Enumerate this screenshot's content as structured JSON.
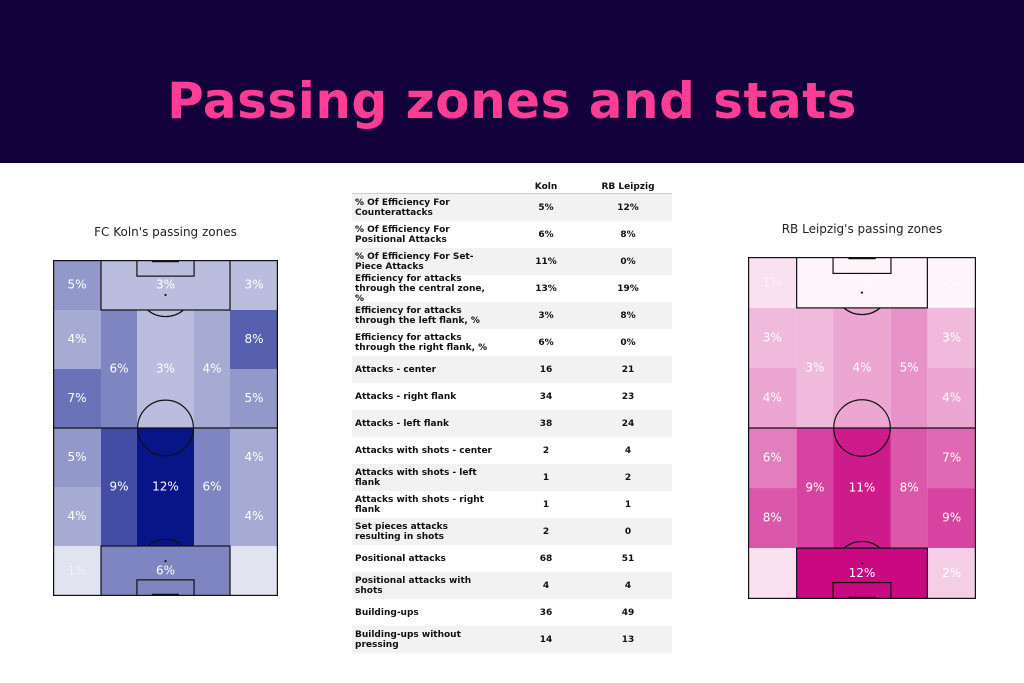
{
  "header": {
    "title": "Passing zones and stats"
  },
  "chart_data": [
    {
      "type": "heatmap",
      "title": "FC Koln's passing zones",
      "palette": {
        "low": "#ffffff",
        "high": "#000e84",
        "max": 12
      },
      "zones": [
        {
          "col": 0,
          "row": 0,
          "span": [
            1,
            1
          ],
          "value": 5,
          "label": "5%"
        },
        {
          "col": 1,
          "row": 0,
          "span": [
            3,
            1
          ],
          "value": 3,
          "label": "3%"
        },
        {
          "col": 4,
          "row": 0,
          "span": [
            1,
            1
          ],
          "value": 3,
          "label": "3%"
        },
        {
          "col": 0,
          "row": 1,
          "span": [
            1,
            1
          ],
          "value": 4,
          "label": "4%"
        },
        {
          "col": 4,
          "row": 1,
          "span": [
            1,
            1
          ],
          "value": 8,
          "label": "8%"
        },
        {
          "col": 0,
          "row": 2,
          "span": [
            1,
            1
          ],
          "value": 7,
          "label": "7%"
        },
        {
          "col": 4,
          "row": 2,
          "span": [
            1,
            1
          ],
          "value": 5,
          "label": "5%"
        },
        {
          "col": 1,
          "row": 1,
          "span": [
            1,
            2
          ],
          "value": 6,
          "label": "6%"
        },
        {
          "col": 2,
          "row": 1,
          "span": [
            1,
            2
          ],
          "value": 3,
          "label": "3%"
        },
        {
          "col": 3,
          "row": 1,
          "span": [
            1,
            2
          ],
          "value": 4,
          "label": "4%"
        },
        {
          "col": 0,
          "row": 3,
          "span": [
            1,
            1
          ],
          "value": 5,
          "label": "5%"
        },
        {
          "col": 4,
          "row": 3,
          "span": [
            1,
            1
          ],
          "value": 4,
          "label": "4%"
        },
        {
          "col": 0,
          "row": 4,
          "span": [
            1,
            1
          ],
          "value": 4,
          "label": "4%"
        },
        {
          "col": 4,
          "row": 4,
          "span": [
            1,
            1
          ],
          "value": 4,
          "label": "4%"
        },
        {
          "col": 1,
          "row": 3,
          "span": [
            1,
            2
          ],
          "value": 9,
          "label": "9%"
        },
        {
          "col": 2,
          "row": 3,
          "span": [
            1,
            2
          ],
          "value": 12,
          "label": "12%"
        },
        {
          "col": 3,
          "row": 3,
          "span": [
            1,
            2
          ],
          "value": 6,
          "label": "6%"
        },
        {
          "col": 0,
          "row": 5,
          "span": [
            1,
            1
          ],
          "value": 1,
          "label": "1%"
        },
        {
          "col": 1,
          "row": 5,
          "span": [
            3,
            1
          ],
          "value": 6,
          "label": "6%"
        },
        {
          "col": 4,
          "row": 5,
          "span": [
            1,
            1
          ],
          "value": 1,
          "label": ""
        }
      ]
    },
    {
      "type": "heatmap",
      "title": "RB Leipzig's passing zones",
      "palette": {
        "low": "#ffffff",
        "high": "#c8007e",
        "max": 12
      },
      "zones": [
        {
          "col": 0,
          "row": 0,
          "span": [
            1,
            1
          ],
          "value": 1,
          "label": "1%"
        },
        {
          "col": 1,
          "row": 0,
          "span": [
            3,
            1
          ],
          "value": 0,
          "label": "0%"
        },
        {
          "col": 4,
          "row": 0,
          "span": [
            1,
            1
          ],
          "value": 0,
          "label": "0%"
        },
        {
          "col": 0,
          "row": 1,
          "span": [
            1,
            1
          ],
          "value": 3,
          "label": "3%"
        },
        {
          "col": 4,
          "row": 1,
          "span": [
            1,
            1
          ],
          "value": 3,
          "label": "3%"
        },
        {
          "col": 0,
          "row": 2,
          "span": [
            1,
            1
          ],
          "value": 4,
          "label": "4%"
        },
        {
          "col": 4,
          "row": 2,
          "span": [
            1,
            1
          ],
          "value": 4,
          "label": "4%"
        },
        {
          "col": 1,
          "row": 1,
          "span": [
            1,
            2
          ],
          "value": 3,
          "label": "3%"
        },
        {
          "col": 2,
          "row": 1,
          "span": [
            1,
            2
          ],
          "value": 4,
          "label": "4%"
        },
        {
          "col": 3,
          "row": 1,
          "span": [
            1,
            2
          ],
          "value": 5,
          "label": "5%"
        },
        {
          "col": 0,
          "row": 3,
          "span": [
            1,
            1
          ],
          "value": 6,
          "label": "6%"
        },
        {
          "col": 4,
          "row": 3,
          "span": [
            1,
            1
          ],
          "value": 7,
          "label": "7%"
        },
        {
          "col": 0,
          "row": 4,
          "span": [
            1,
            1
          ],
          "value": 8,
          "label": "8%"
        },
        {
          "col": 4,
          "row": 4,
          "span": [
            1,
            1
          ],
          "value": 9,
          "label": "9%"
        },
        {
          "col": 1,
          "row": 3,
          "span": [
            1,
            2
          ],
          "value": 9,
          "label": "9%"
        },
        {
          "col": 2,
          "row": 3,
          "span": [
            1,
            2
          ],
          "value": 11,
          "label": "11%"
        },
        {
          "col": 3,
          "row": 3,
          "span": [
            1,
            2
          ],
          "value": 8,
          "label": "8%"
        },
        {
          "col": 0,
          "row": 5,
          "span": [
            1,
            1
          ],
          "value": 1,
          "label": ""
        },
        {
          "col": 1,
          "row": 5,
          "span": [
            3,
            1
          ],
          "value": 12,
          "label": "12%"
        },
        {
          "col": 4,
          "row": 5,
          "span": [
            1,
            1
          ],
          "value": 2,
          "label": "2%"
        }
      ]
    },
    {
      "type": "table",
      "columns": [
        "",
        "Koln",
        "RB Leipzig"
      ],
      "rows": [
        {
          "label": "% Of Efficiency For Counterattacks",
          "koln": "5%",
          "leipzig": "12%"
        },
        {
          "label": "% Of Efficiency For Positional Attacks",
          "koln": "6%",
          "leipzig": "8%"
        },
        {
          "label": "% Of Efficiency For Set-Piece Attacks",
          "koln": "11%",
          "leipzig": "0%"
        },
        {
          "label": "Efficiency for attacks through the central zone, %",
          "koln": "13%",
          "leipzig": "19%"
        },
        {
          "label": "Efficiency for attacks through the left flank, %",
          "koln": "3%",
          "leipzig": "8%"
        },
        {
          "label": "Efficiency for attacks through the right flank, %",
          "koln": "6%",
          "leipzig": "0%"
        },
        {
          "label": "Attacks - center",
          "koln": "16",
          "leipzig": "21"
        },
        {
          "label": "Attacks - right flank",
          "koln": "34",
          "leipzig": "23"
        },
        {
          "label": "Attacks - left flank",
          "koln": "38",
          "leipzig": "24"
        },
        {
          "label": "Attacks with shots - center",
          "koln": "2",
          "leipzig": "4"
        },
        {
          "label": "Attacks with shots - left flank",
          "koln": "1",
          "leipzig": "2"
        },
        {
          "label": "Attacks with shots - right flank",
          "koln": "1",
          "leipzig": "1"
        },
        {
          "label": "Set pieces attacks resulting in shots",
          "koln": "2",
          "leipzig": "0"
        },
        {
          "label": "Positional attacks",
          "koln": "68",
          "leipzig": "51"
        },
        {
          "label": "Positional attacks with shots",
          "koln": "4",
          "leipzig": "4"
        },
        {
          "label": "Building-ups",
          "koln": "36",
          "leipzig": "49"
        },
        {
          "label": "Building-ups without pressing",
          "koln": "14",
          "leipzig": "13"
        }
      ]
    }
  ]
}
